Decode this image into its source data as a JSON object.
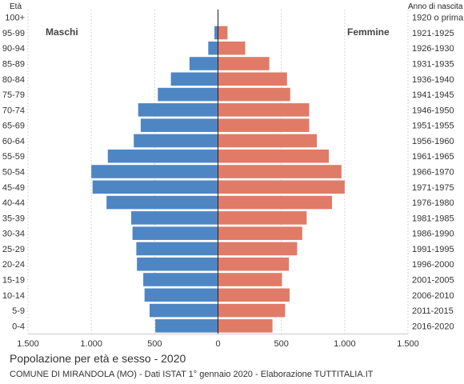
{
  "chart_data": {
    "type": "bar",
    "orientation": "horizontal-population-pyramid",
    "title": "Popolazione per età e sesso - 2020",
    "subtitle": "COMUNE DI MIRANDOLA (MO) - Dati ISTAT 1° gennaio 2020 - Elaborazione TUTTITALIA.IT",
    "age_axis_label": "Età",
    "birth_year_axis_label": "Anno di nascita",
    "categories": [
      "100+",
      "95-99",
      "90-94",
      "85-89",
      "80-84",
      "75-79",
      "70-74",
      "65-69",
      "60-64",
      "55-59",
      "50-54",
      "45-49",
      "40-44",
      "35-39",
      "30-34",
      "25-29",
      "20-24",
      "15-19",
      "10-14",
      "5-9",
      "0-4"
    ],
    "birth_years": [
      "1920 o prima",
      "1921-1925",
      "1926-1930",
      "1931-1935",
      "1936-1940",
      "1941-1945",
      "1946-1950",
      "1951-1955",
      "1956-1960",
      "1961-1965",
      "1966-1970",
      "1971-1975",
      "1976-1980",
      "1981-1985",
      "1986-1990",
      "1991-1995",
      "1996-2000",
      "2001-2005",
      "2006-2010",
      "2011-2015",
      "2016-2020"
    ],
    "series": [
      {
        "name": "Maschi",
        "color": "#4e86c4",
        "values": [
          1,
          28,
          77,
          225,
          372,
          475,
          630,
          610,
          665,
          870,
          1000,
          990,
          880,
          685,
          675,
          645,
          640,
          590,
          580,
          540,
          495
        ]
      },
      {
        "name": "Femmine",
        "color": "#e07b67",
        "values": [
          3,
          75,
          215,
          405,
          545,
          570,
          720,
          720,
          780,
          875,
          975,
          1000,
          900,
          700,
          665,
          625,
          560,
          505,
          565,
          530,
          430
        ]
      }
    ],
    "xlim": [
      -1500,
      1500
    ],
    "x_ticks": [
      -1500,
      -1000,
      -500,
      0,
      500,
      1000,
      1500
    ],
    "x_tick_labels": [
      "1.500",
      "1.000",
      "500",
      "0",
      "500",
      "1.000",
      "1.500"
    ],
    "grid": true
  }
}
